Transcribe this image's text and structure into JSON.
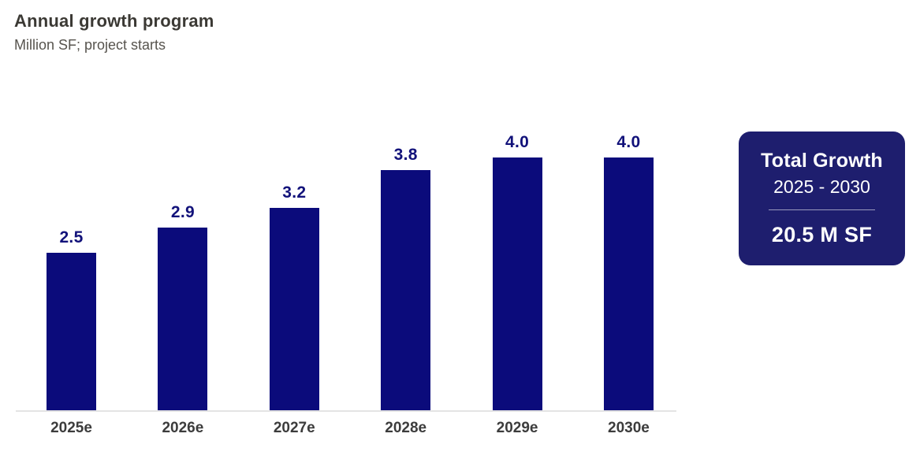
{
  "header": {
    "title": "Annual growth program",
    "subtitle": "Million SF; project starts"
  },
  "chart_data": {
    "type": "bar",
    "title": "Annual growth program",
    "subtitle": "Million SF; project starts",
    "categories": [
      "2025e",
      "2026e",
      "2027e",
      "2028e",
      "2029e",
      "2030e"
    ],
    "values": [
      2.5,
      2.9,
      3.2,
      3.8,
      4.0,
      4.0
    ],
    "value_labels": [
      "2.5",
      "2.9",
      "3.2",
      "3.8",
      "4.0",
      "4.0"
    ],
    "xlabel": "",
    "ylabel": "Million SF",
    "ylim": [
      0,
      4.5
    ],
    "y_axis_visible": false,
    "grid": false,
    "legend": false,
    "bar_color": "#0B0B7B",
    "value_label_color": "#12127A",
    "axis_line_color": "#E4E4E4"
  },
  "summary_card": {
    "title": "Total Growth",
    "period": "2025 - 2030",
    "value": "20.5 M SF",
    "background": "#1E1E6E",
    "text_color": "#FFFFFF"
  }
}
